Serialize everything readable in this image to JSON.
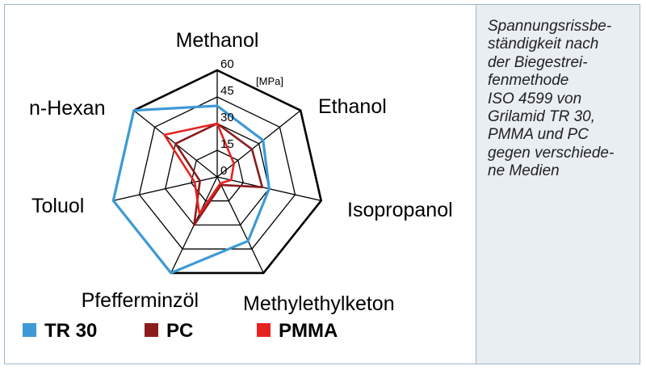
{
  "caption": "Spannungsrissbe-\nständigkeit nach\nder Biegestrei-\nfenmethode\nISO 4599 von\nGrilamid TR 30,\nPMMA und PC\ngegen verschiede-\nne Medien",
  "chart_data": {
    "type": "radar",
    "axes": [
      "Methanol",
      "Ethanol",
      "Isopropanol",
      "Methylethylketon",
      "Pfefferminzöl",
      "Toluol",
      "n-Hexan"
    ],
    "ticks": [
      "0",
      "15",
      "30",
      "45",
      "60"
    ],
    "tick_values": [
      0,
      15,
      30,
      45,
      60
    ],
    "unit": "[MPa]",
    "range": [
      0,
      60
    ],
    "series": [
      {
        "name": "TR 30",
        "color": "#3d9ad6",
        "values": [
          40,
          33,
          30,
          40,
          60,
          60,
          60
        ]
      },
      {
        "name": "PC",
        "color": "#8b1c1c",
        "values": [
          30,
          25,
          26,
          5,
          30,
          10,
          30
        ]
      },
      {
        "name": "PMMA",
        "color": "#e52421",
        "values": [
          30,
          12,
          8,
          4,
          23,
          13,
          38
        ]
      }
    ]
  },
  "colors": {
    "grid": "#000000",
    "outer": "#000000",
    "frame": "#9fb6cc",
    "caption_bg": "#e9eef3"
  }
}
